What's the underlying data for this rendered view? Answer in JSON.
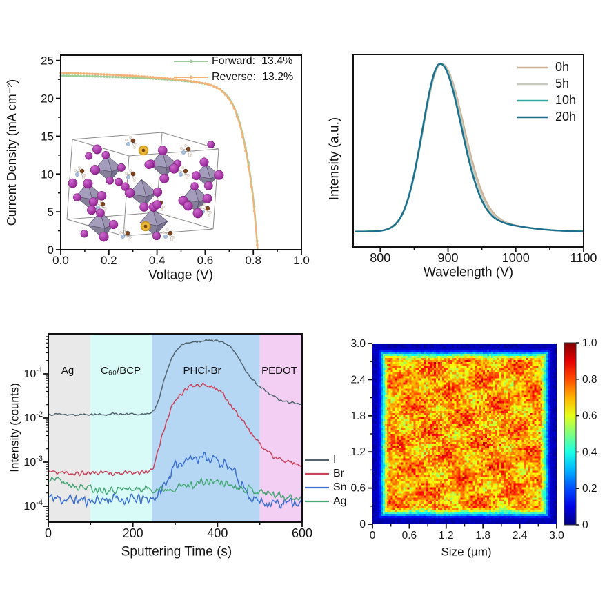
{
  "chart_data": [
    {
      "id": "jv",
      "type": "line",
      "xlabel": "Voltage (V)",
      "ylabel": "Current Density (mA cm⁻²)",
      "xlim": [
        0.0,
        1.0
      ],
      "ylim": [
        0,
        25.7
      ],
      "xticks_v": [
        0.0,
        0.2,
        0.4,
        0.6,
        0.8,
        1.0
      ],
      "xticks_l": [
        "0.0",
        "0.2",
        "0.4",
        "0.6",
        "0.8",
        "1.0"
      ],
      "xticks_minor": [
        0.1,
        0.3,
        0.5,
        0.7,
        0.9
      ],
      "yticks_v": [
        0,
        5,
        10,
        15,
        20,
        25
      ],
      "yticks_l": [
        "0",
        "5",
        "10",
        "15",
        "20",
        "25"
      ],
      "yticks_minor": [
        2.5,
        7.5,
        12.5,
        17.5,
        22.5
      ],
      "legend_position": "top-right",
      "inset": "perovskite crystal structure model",
      "series": [
        {
          "name": "Forward",
          "legend": "Forward:  13.4%",
          "color": "#9ccf97",
          "points": [
            [
              0,
              23.0
            ],
            [
              0.05,
              22.97
            ],
            [
              0.1,
              22.93
            ],
            [
              0.15,
              22.9
            ],
            [
              0.2,
              22.85
            ],
            [
              0.25,
              22.8
            ],
            [
              0.3,
              22.74
            ],
            [
              0.35,
              22.67
            ],
            [
              0.4,
              22.58
            ],
            [
              0.45,
              22.47
            ],
            [
              0.5,
              22.33
            ],
            [
              0.55,
              22.16
            ],
            [
              0.6,
              21.92
            ],
            [
              0.63,
              21.68
            ],
            [
              0.66,
              21.25
            ],
            [
              0.68,
              20.75
            ],
            [
              0.7,
              20.0
            ],
            [
              0.72,
              18.9
            ],
            [
              0.74,
              17.2
            ],
            [
              0.76,
              14.8
            ],
            [
              0.78,
              11.5
            ],
            [
              0.795,
              8.3
            ],
            [
              0.805,
              5.4
            ],
            [
              0.812,
              2.8
            ],
            [
              0.818,
              0.3
            ],
            [
              0.819,
              0
            ]
          ]
        },
        {
          "name": "Reverse",
          "legend": "Reverse:  13.2%",
          "color": "#f5b277",
          "points": [
            [
              0,
              23.35
            ],
            [
              0.05,
              23.3
            ],
            [
              0.1,
              23.25
            ],
            [
              0.15,
              23.2
            ],
            [
              0.2,
              23.13
            ],
            [
              0.25,
              23.05
            ],
            [
              0.3,
              22.96
            ],
            [
              0.35,
              22.86
            ],
            [
              0.4,
              22.74
            ],
            [
              0.45,
              22.6
            ],
            [
              0.5,
              22.43
            ],
            [
              0.55,
              22.22
            ],
            [
              0.6,
              21.95
            ],
            [
              0.63,
              21.68
            ],
            [
              0.66,
              21.2
            ],
            [
              0.68,
              20.65
            ],
            [
              0.7,
              19.85
            ],
            [
              0.72,
              18.7
            ],
            [
              0.74,
              16.9
            ],
            [
              0.76,
              14.4
            ],
            [
              0.78,
              11.0
            ],
            [
              0.795,
              7.7
            ],
            [
              0.805,
              4.8
            ],
            [
              0.812,
              2.2
            ],
            [
              0.817,
              0.2
            ],
            [
              0.818,
              0
            ]
          ]
        }
      ]
    },
    {
      "id": "pl",
      "type": "line",
      "xlabel": "Wavelength (V)",
      "ylabel": "Intensity (a.u.)",
      "xlim": [
        760,
        1100
      ],
      "xticks_v": [
        800,
        900,
        1000,
        1100
      ],
      "xticks_l": [
        "800",
        "900",
        "1000",
        "1100"
      ],
      "xticks_minor": [
        850,
        950,
        1050
      ],
      "baseline": 0.072,
      "peak_amplitude": 0.93,
      "tail": {
        "center": 948,
        "sigma": 55,
        "amp": 0.05
      },
      "legend_position": "top-right",
      "series": [
        {
          "name": "0h",
          "color": "#cdb295",
          "center": 890,
          "sigma_left": 27,
          "sigma_right": 33
        },
        {
          "name": "5h",
          "color": "#c7c7be",
          "center": 889.5,
          "sigma_left": 26.5,
          "sigma_right": 32
        },
        {
          "name": "10h",
          "color": "#2fa7a0",
          "center": 888.5,
          "sigma_left": 26,
          "sigma_right": 31
        },
        {
          "name": "20h",
          "color": "#1e6f8e",
          "center": 888,
          "sigma_left": 26,
          "sigma_right": 31
        }
      ]
    },
    {
      "id": "depth",
      "type": "line",
      "xlabel": "Sputtering Time (s)",
      "ylabel": "Intensity (counts)",
      "yscale": "log",
      "xlim": [
        0,
        600
      ],
      "ylim_log10": [
        -4.35,
        -0.12
      ],
      "xticks_v": [
        0,
        200,
        400,
        600
      ],
      "xticks_l": [
        "0",
        "200",
        "400",
        "600"
      ],
      "xticks_minor": [
        100,
        300,
        500
      ],
      "yticks_exp": [
        -1,
        -2,
        -3,
        -4
      ],
      "yticks_l": [
        "10^-1",
        "10^-2",
        "10^-3",
        "10^-4"
      ],
      "legend_position": "outside-right",
      "regions": [
        {
          "label": "Ag",
          "x0": 0,
          "x1": 100,
          "color": "#e9e9e9"
        },
        {
          "label": "C₆₀/BCP",
          "x0": 100,
          "x1": 245,
          "color": "#d9fbf8"
        },
        {
          "label": "PHCl-Br",
          "x0": 245,
          "x1": 500,
          "color": "#b5d7f3"
        },
        {
          "label": "PEDOT",
          "x0": 500,
          "x1": 600,
          "color": "#f3cff3"
        }
      ],
      "series": [
        {
          "name": "I",
          "color": "#52646e",
          "noise": 0.018,
          "anchors_log10": [
            [
              0,
              -1.92
            ],
            [
              60,
              -1.93
            ],
            [
              120,
              -1.92
            ],
            [
              180,
              -1.91
            ],
            [
              240,
              -1.9
            ],
            [
              252,
              -1.82
            ],
            [
              262,
              -1.55
            ],
            [
              272,
              -1.2
            ],
            [
              282,
              -0.9
            ],
            [
              292,
              -0.65
            ],
            [
              302,
              -0.48
            ],
            [
              315,
              -0.36
            ],
            [
              330,
              -0.29
            ],
            [
              350,
              -0.26
            ],
            [
              375,
              -0.245
            ],
            [
              400,
              -0.25
            ],
            [
              415,
              -0.28
            ],
            [
              428,
              -0.36
            ],
            [
              440,
              -0.5
            ],
            [
              452,
              -0.68
            ],
            [
              465,
              -0.9
            ],
            [
              478,
              -1.08
            ],
            [
              490,
              -1.2
            ],
            [
              505,
              -1.32
            ],
            [
              520,
              -1.45
            ],
            [
              540,
              -1.56
            ],
            [
              560,
              -1.62
            ],
            [
              580,
              -1.66
            ],
            [
              600,
              -1.7
            ]
          ]
        },
        {
          "name": "Br",
          "color": "#c8445c",
          "noise": 0.035,
          "anchors_log10": [
            [
              0,
              -3.22
            ],
            [
              60,
              -3.25
            ],
            [
              120,
              -3.24
            ],
            [
              180,
              -3.26
            ],
            [
              240,
              -3.22
            ],
            [
              248,
              -3.1
            ],
            [
              258,
              -2.8
            ],
            [
              268,
              -2.45
            ],
            [
              278,
              -2.1
            ],
            [
              288,
              -1.85
            ],
            [
              298,
              -1.65
            ],
            [
              310,
              -1.5
            ],
            [
              322,
              -1.38
            ],
            [
              335,
              -1.28
            ],
            [
              350,
              -1.24
            ],
            [
              370,
              -1.23
            ],
            [
              385,
              -1.27
            ],
            [
              400,
              -1.35
            ],
            [
              412,
              -1.47
            ],
            [
              425,
              -1.62
            ],
            [
              440,
              -1.8
            ],
            [
              455,
              -2.0
            ],
            [
              470,
              -2.2
            ],
            [
              485,
              -2.42
            ],
            [
              500,
              -2.6
            ],
            [
              515,
              -2.75
            ],
            [
              530,
              -2.85
            ],
            [
              550,
              -2.95
            ],
            [
              570,
              -3.02
            ],
            [
              585,
              -3.06
            ],
            [
              600,
              -3.1
            ]
          ]
        },
        {
          "name": "Sn",
          "color": "#3b6fd0",
          "noise": 0.09,
          "anchors_log10": [
            [
              0,
              -3.8
            ],
            [
              50,
              -3.85
            ],
            [
              100,
              -3.87
            ],
            [
              150,
              -3.83
            ],
            [
              200,
              -3.85
            ],
            [
              240,
              -3.84
            ],
            [
              260,
              -3.75
            ],
            [
              275,
              -3.5
            ],
            [
              290,
              -3.25
            ],
            [
              305,
              -3.05
            ],
            [
              320,
              -2.95
            ],
            [
              340,
              -2.9
            ],
            [
              360,
              -2.87
            ],
            [
              380,
              -2.89
            ],
            [
              395,
              -2.95
            ],
            [
              410,
              -3.02
            ],
            [
              425,
              -3.12
            ],
            [
              440,
              -3.25
            ],
            [
              455,
              -3.45
            ],
            [
              468,
              -3.65
            ],
            [
              480,
              -3.8
            ],
            [
              495,
              -3.88
            ],
            [
              520,
              -3.9
            ],
            [
              545,
              -3.95
            ],
            [
              570,
              -3.92
            ],
            [
              600,
              -3.95
            ]
          ]
        },
        {
          "name": "Ag",
          "color": "#47a877",
          "noise": 0.06,
          "anchors_log10": [
            [
              0,
              -3.33
            ],
            [
              25,
              -3.42
            ],
            [
              50,
              -3.5
            ],
            [
              80,
              -3.56
            ],
            [
              110,
              -3.6
            ],
            [
              150,
              -3.62
            ],
            [
              200,
              -3.61
            ],
            [
              240,
              -3.6
            ],
            [
              270,
              -3.62
            ],
            [
              300,
              -3.57
            ],
            [
              330,
              -3.52
            ],
            [
              360,
              -3.47
            ],
            [
              385,
              -3.44
            ],
            [
              410,
              -3.46
            ],
            [
              435,
              -3.52
            ],
            [
              460,
              -3.58
            ],
            [
              480,
              -3.62
            ],
            [
              505,
              -3.68
            ],
            [
              530,
              -3.72
            ],
            [
              555,
              -3.76
            ],
            [
              580,
              -3.8
            ],
            [
              600,
              -3.82
            ]
          ]
        }
      ]
    },
    {
      "id": "map",
      "type": "heatmap",
      "xlabel": "Size (μm)",
      "xlim": [
        0,
        3
      ],
      "ylim": [
        0,
        3
      ],
      "xticks_v": [
        0,
        0.6,
        1.2,
        1.8,
        2.4,
        3.0
      ],
      "xticks_l": [
        "0",
        "0.6",
        "1.2",
        "1.8",
        "2.4",
        "3.0"
      ],
      "yticks_l": [
        "0",
        "0.6",
        "1.2",
        "1.8",
        "2.4",
        "3.0"
      ],
      "ticks_minor": [
        0.3,
        0.9,
        1.5,
        2.1,
        2.7
      ],
      "colormap": "jet",
      "colorbar": {
        "range": [
          0,
          1
        ],
        "ticks_v": [
          0,
          0.2,
          0.4,
          0.6,
          0.8,
          1.0
        ],
        "ticks_l": [
          "0",
          "0.2",
          "0.4",
          "0.6",
          "0.8",
          "1.0"
        ]
      },
      "grid": [
        90,
        88
      ],
      "interior_mean": 0.72,
      "interior_noise": 0.12,
      "edge_falloff_fraction": 0.09,
      "seed": 7
    }
  ]
}
